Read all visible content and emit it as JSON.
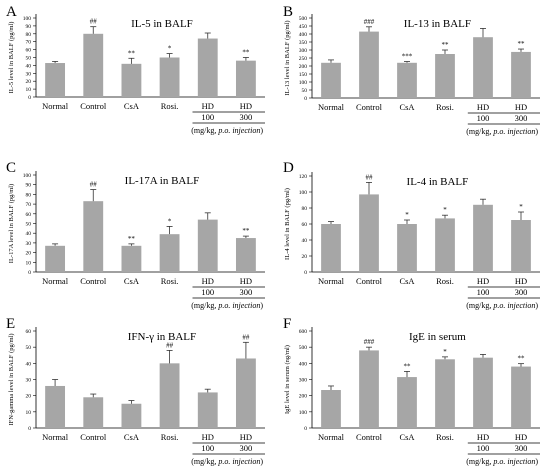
{
  "figure": {
    "note_prefix": "(mg/kg, ",
    "note_italic": "p.o. injection",
    "note_suffix": ")",
    "bar_color": "#a6a6a6",
    "error_color": "#333333"
  },
  "chart_data": [
    {
      "panel": "A",
      "type": "bar",
      "title": "IL-5 in BALF",
      "ylabel": "IL-5 level in BALF (pg/ml)",
      "ylim": [
        0,
        100
      ],
      "yticks": [
        0,
        10,
        20,
        30,
        40,
        50,
        60,
        70,
        80,
        90,
        100
      ],
      "categories": [
        "Normal",
        "Control",
        "CsA",
        "Rosi.",
        "HD",
        "HD"
      ],
      "sub_labels": [
        "",
        "",
        "",
        "",
        "100",
        "300"
      ],
      "values": [
        43,
        80,
        42,
        50,
        74,
        46
      ],
      "errors": [
        2,
        9,
        7,
        5,
        7,
        4
      ],
      "significance": [
        "",
        "##",
        "**",
        "*",
        "",
        "**"
      ],
      "show_note": true
    },
    {
      "panel": "B",
      "type": "bar",
      "title": "IL-13 in BALF",
      "ylabel": "IL-13 level in BALF (pg/ml)",
      "ylim": [
        0,
        500
      ],
      "yticks": [
        0,
        50,
        100,
        150,
        200,
        250,
        300,
        350,
        400,
        450,
        500
      ],
      "categories": [
        "Normal",
        "Control",
        "CsA",
        "Rosi.",
        "HD",
        "HD"
      ],
      "sub_labels": [
        "",
        "",
        "",
        "",
        "100",
        "300"
      ],
      "values": [
        220,
        415,
        220,
        275,
        380,
        288
      ],
      "errors": [
        18,
        30,
        8,
        25,
        55,
        18
      ],
      "significance": [
        "",
        "###",
        "***",
        "**",
        "",
        "**"
      ],
      "show_note": true
    },
    {
      "panel": "C",
      "type": "bar",
      "title": "IL-17A in BALF",
      "ylabel": "IL-17A level in BALF (pg/ml)",
      "ylim": [
        0,
        100
      ],
      "yticks": [
        0,
        10,
        20,
        30,
        40,
        50,
        60,
        70,
        80,
        90,
        100
      ],
      "categories": [
        "Normal",
        "Control",
        "CsA",
        "Rosi.",
        "HD",
        "HD"
      ],
      "sub_labels": [
        "",
        "",
        "",
        "",
        "100",
        "300"
      ],
      "values": [
        27,
        73,
        27,
        39,
        54,
        35
      ],
      "errors": [
        2,
        12,
        2,
        8,
        7,
        2
      ],
      "significance": [
        "",
        "##",
        "**",
        "*",
        "",
        "**"
      ],
      "show_note": true
    },
    {
      "panel": "D",
      "type": "bar",
      "title": "IL-4 in BALF",
      "ylabel": "IL-4 level in BALF (pg/ml)",
      "ylim": [
        0,
        120
      ],
      "yticks": [
        0,
        20,
        40,
        60,
        80,
        100,
        120
      ],
      "categories": [
        "Normal",
        "Control",
        "CsA",
        "Rosi.",
        "HD",
        "HD"
      ],
      "sub_labels": [
        "",
        "",
        "",
        "",
        "100",
        "300"
      ],
      "values": [
        60,
        97,
        60,
        67,
        84,
        65
      ],
      "errors": [
        3,
        15,
        5,
        4,
        7,
        10
      ],
      "significance": [
        "",
        "##",
        "*",
        "*",
        "",
        "*"
      ],
      "show_note": true
    },
    {
      "panel": "E",
      "type": "bar",
      "title": "IFN-γ in BALF",
      "ylabel": "IFN-gamma level in BALF (pg/ml)",
      "ylim": [
        0,
        60
      ],
      "yticks": [
        0,
        10,
        20,
        30,
        40,
        50,
        60
      ],
      "categories": [
        "Normal",
        "Control",
        "CsA",
        "Rosi.",
        "HD",
        "HD"
      ],
      "sub_labels": [
        "",
        "",
        "",
        "",
        "100",
        "300"
      ],
      "values": [
        26,
        19,
        15,
        40,
        22,
        43
      ],
      "errors": [
        4,
        2,
        2,
        8,
        2,
        10
      ],
      "significance": [
        "",
        "",
        "",
        "##",
        "",
        "##"
      ],
      "show_note": true
    },
    {
      "panel": "F",
      "type": "bar",
      "title": "IgE in serum",
      "ylabel": "IgE level in serum (ng/ml)",
      "ylim": [
        0,
        600
      ],
      "yticks": [
        0,
        100,
        200,
        300,
        400,
        500,
        600
      ],
      "categories": [
        "Normal",
        "Control",
        "CsA",
        "Rosi.",
        "HD",
        "HD"
      ],
      "sub_labels": [
        "",
        "",
        "",
        "",
        "100",
        "300"
      ],
      "values": [
        235,
        480,
        315,
        425,
        435,
        380
      ],
      "errors": [
        25,
        20,
        35,
        15,
        20,
        18
      ],
      "significance": [
        "",
        "###",
        "**",
        "*",
        "",
        "**"
      ],
      "show_note": true
    }
  ]
}
